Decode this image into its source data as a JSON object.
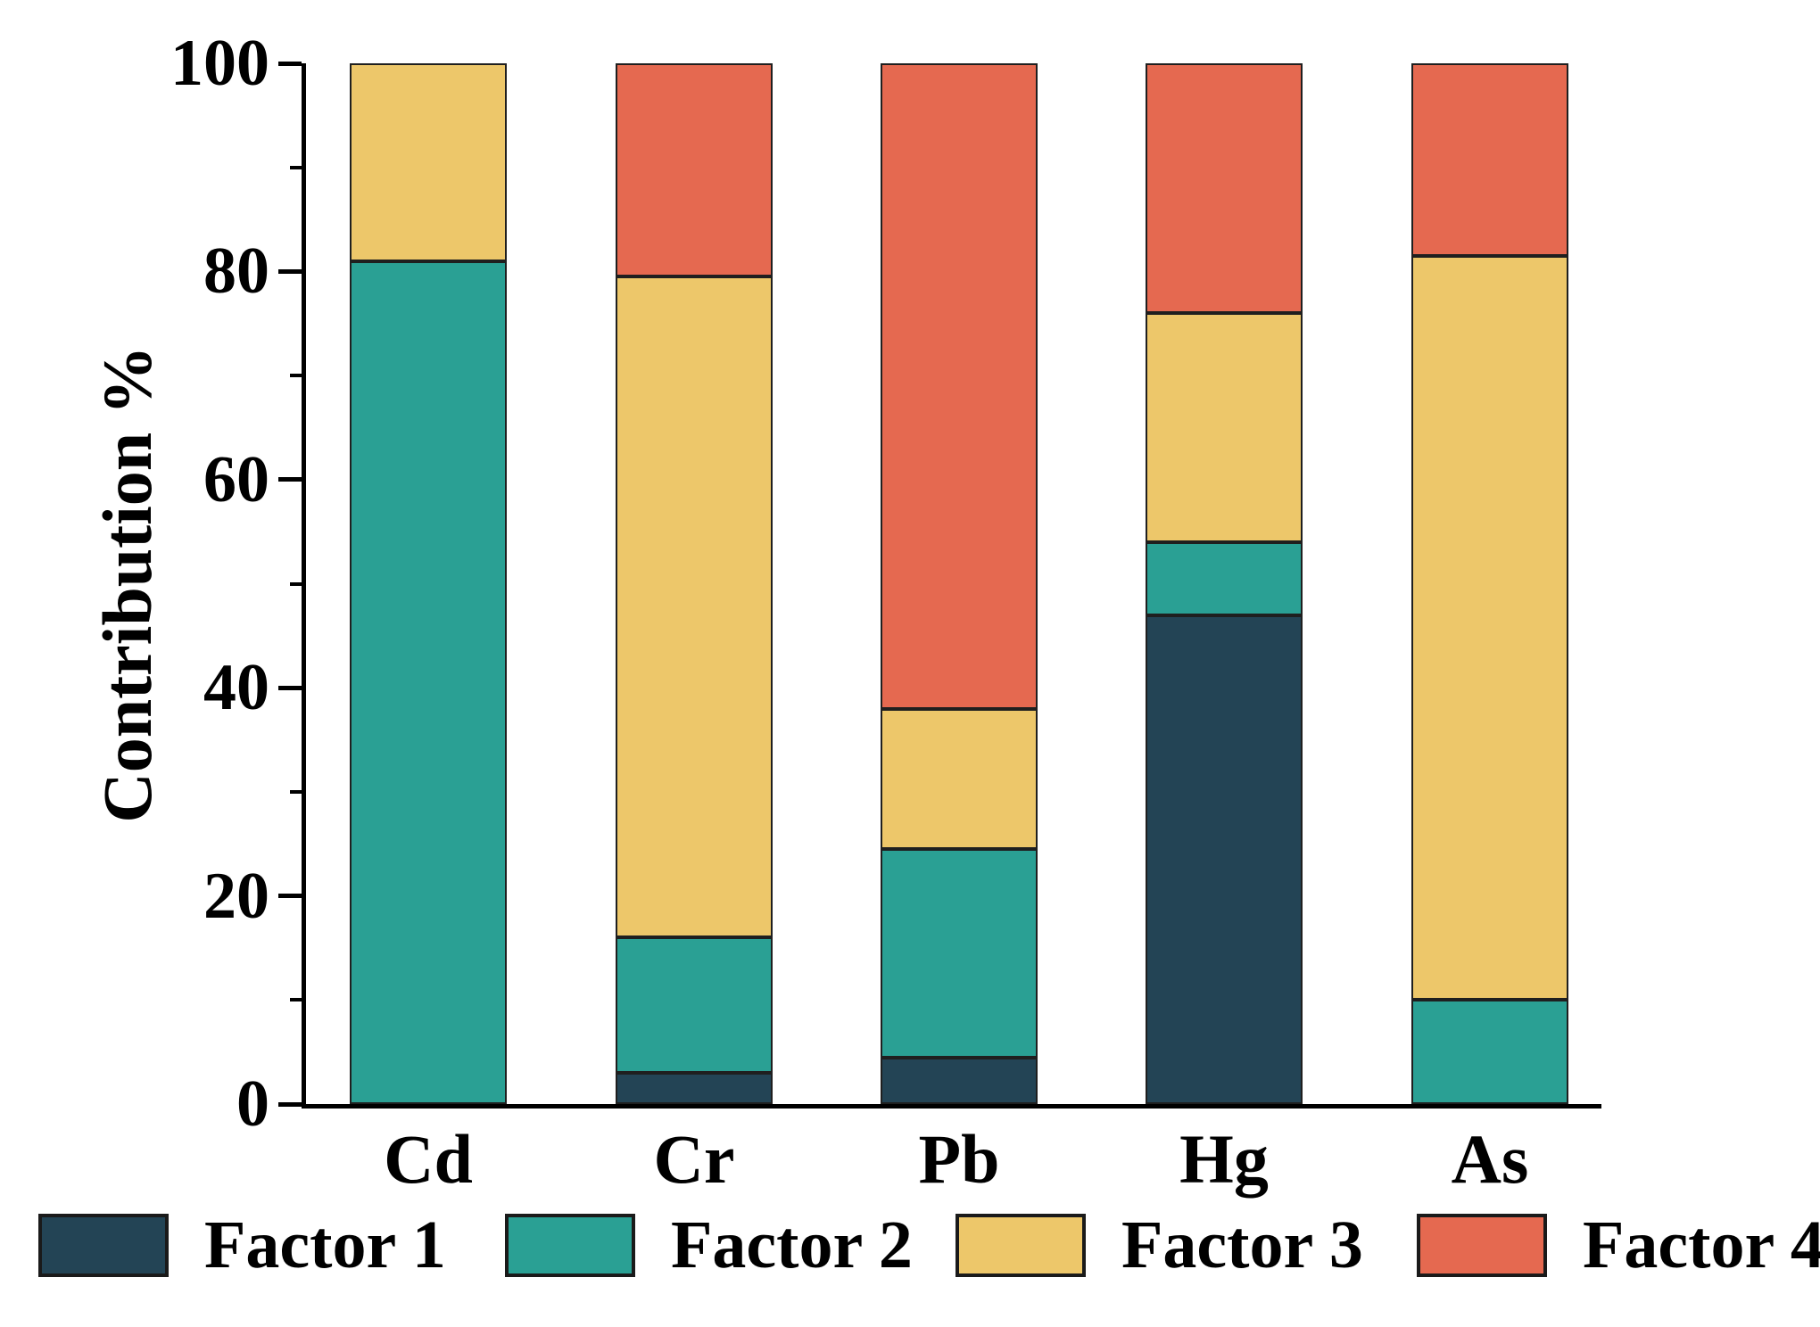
{
  "chart_data": {
    "type": "bar",
    "stacked": true,
    "orientation": "vertical",
    "title": "",
    "xlabel": "",
    "ylabel": "Contribution %",
    "categories": [
      "Cd",
      "Cr",
      "Pb",
      "Hg",
      "As"
    ],
    "series": [
      {
        "name": "Factor 1",
        "color": "#234455",
        "values": [
          0,
          3,
          4.5,
          47,
          0
        ]
      },
      {
        "name": "Factor 2",
        "color": "#2AA094",
        "values": [
          81,
          13,
          20,
          7,
          10
        ]
      },
      {
        "name": "Factor 3",
        "color": "#EDC76A",
        "values": [
          19,
          63.5,
          13.5,
          22,
          71.5
        ]
      },
      {
        "name": "Factor 4",
        "color": "#E56950",
        "values": [
          0,
          20.5,
          62,
          24,
          18.5
        ]
      }
    ],
    "ylim": [
      0,
      100
    ],
    "yticks_major": [
      0,
      20,
      40,
      60,
      80,
      100
    ],
    "ytick_labels": [
      "0",
      "20",
      "40",
      "60",
      "80",
      "100"
    ],
    "yticks_minor": [
      10,
      30,
      50,
      70,
      90
    ],
    "grid": false,
    "legend_position": "bottom",
    "bar_edge_color": "#1f1f1f",
    "axis_color": "#000000"
  }
}
